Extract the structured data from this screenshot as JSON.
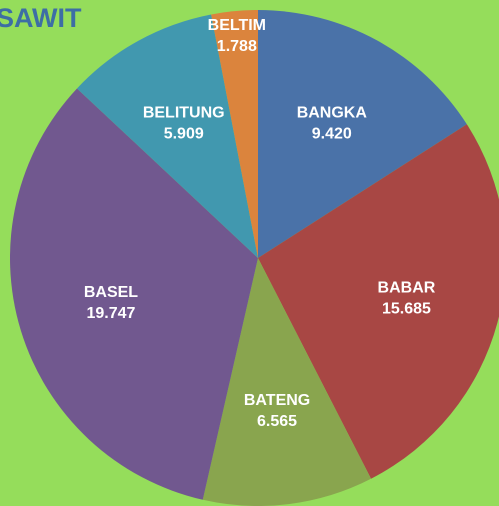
{
  "chart_data": {
    "type": "pie",
    "title": "SAWIT",
    "categories": [
      "BANGKA",
      "BABAR",
      "BATENG",
      "BASEL",
      "BELITUNG",
      "BELTIM"
    ],
    "values": [
      9420,
      15685,
      6565,
      19747,
      5909,
      1788
    ],
    "value_labels": [
      "9.420",
      "15.685",
      "6.565",
      "19.747",
      "5.909",
      "1.788"
    ],
    "colors": [
      "#4a72a8",
      "#a84744",
      "#89a54e",
      "#71588f",
      "#4198af",
      "#db843d"
    ]
  }
}
